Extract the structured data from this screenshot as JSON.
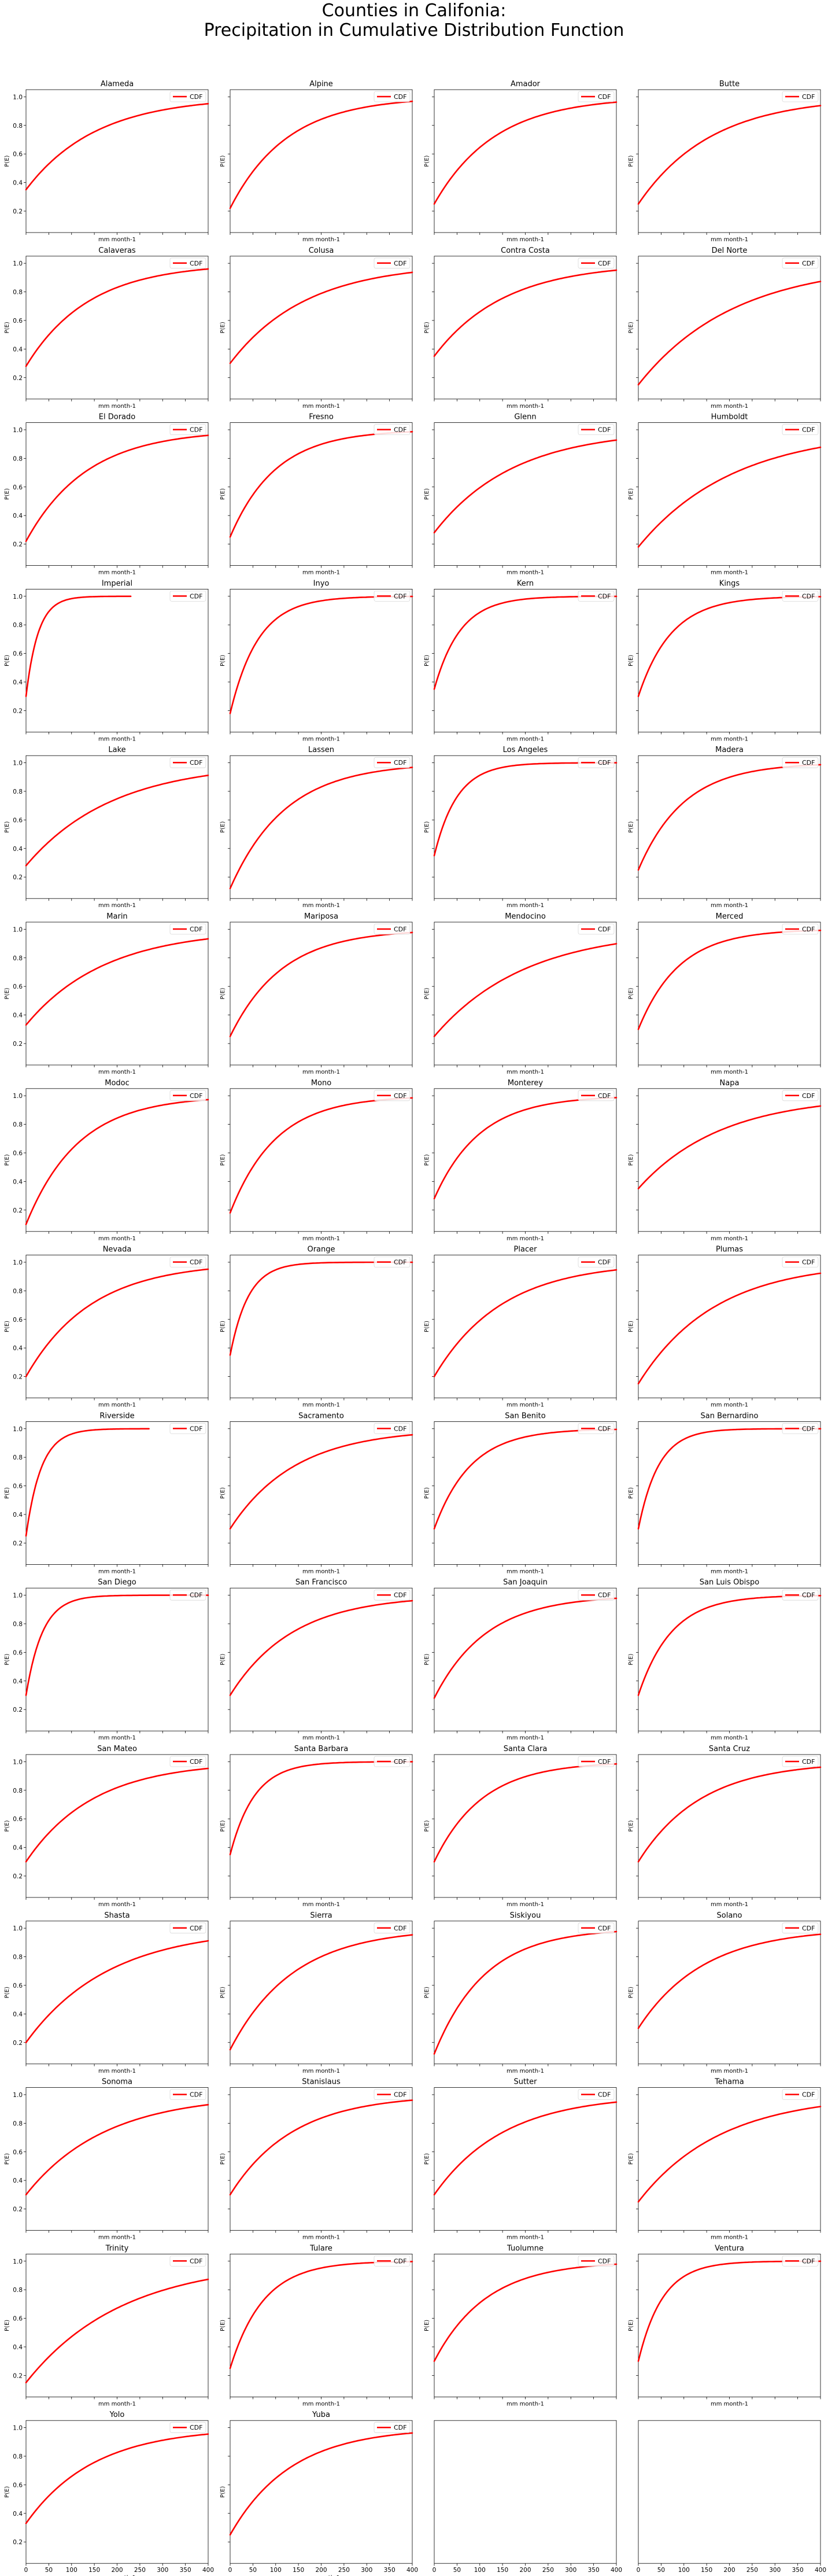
{
  "figure": {
    "title_line1": "Counties in Califonia:",
    "title_line2": "Precipitation in Cumulative Distribution Function",
    "xlabel": "mm month-1",
    "ylabel": "P(E)",
    "legend_label": "CDF",
    "line_color": "#ff0000"
  },
  "chart_data": {
    "type": "line",
    "layout": "grid 15 rows x 4 columns, 2 empty panels at end",
    "shared_axes": {
      "xlim": [
        0,
        400
      ],
      "ylim": [
        0.05,
        1.05
      ],
      "xticks": [
        0,
        50,
        100,
        150,
        200,
        250,
        300,
        350,
        400
      ],
      "yticks": [
        0.2,
        0.4,
        0.6,
        0.8,
        1.0
      ],
      "ytick_labels": [
        "0.2",
        "0.4",
        "0.6",
        "0.8",
        "1.0"
      ]
    },
    "panels": [
      {
        "title": "Alameda",
        "xmax": 400,
        "y0": 0.35,
        "k": 2.6
      },
      {
        "title": "Alpine",
        "xmax": 400,
        "y0": 0.22,
        "k": 3.2
      },
      {
        "title": "Amador",
        "xmax": 400,
        "y0": 0.25,
        "k": 3.0
      },
      {
        "title": "Butte",
        "xmax": 400,
        "y0": 0.25,
        "k": 2.5
      },
      {
        "title": "Calaveras",
        "xmax": 400,
        "y0": 0.28,
        "k": 2.9
      },
      {
        "title": "Colusa",
        "xmax": 400,
        "y0": 0.3,
        "k": 2.4
      },
      {
        "title": "Contra Costa",
        "xmax": 400,
        "y0": 0.35,
        "k": 2.6
      },
      {
        "title": "Del Norte",
        "xmax": 400,
        "y0": 0.15,
        "k": 1.9
      },
      {
        "title": "El Dorado",
        "xmax": 400,
        "y0": 0.22,
        "k": 3.0
      },
      {
        "title": "Fresno",
        "xmax": 400,
        "y0": 0.25,
        "k": 4.0
      },
      {
        "title": "Glenn",
        "xmax": 400,
        "y0": 0.28,
        "k": 2.3
      },
      {
        "title": "Humboldt",
        "xmax": 400,
        "y0": 0.18,
        "k": 1.9
      },
      {
        "title": "Imperial",
        "xmax": 230,
        "y0": 0.3,
        "k": 15.0
      },
      {
        "title": "Inyo",
        "xmax": 400,
        "y0": 0.18,
        "k": 6.5
      },
      {
        "title": "Kern",
        "xmax": 400,
        "y0": 0.35,
        "k": 7.0
      },
      {
        "title": "Kings",
        "xmax": 400,
        "y0": 0.3,
        "k": 5.5
      },
      {
        "title": "Lake",
        "xmax": 400,
        "y0": 0.28,
        "k": 2.1
      },
      {
        "title": "Lassen",
        "xmax": 400,
        "y0": 0.12,
        "k": 3.3
      },
      {
        "title": "Los Angeles",
        "xmax": 400,
        "y0": 0.35,
        "k": 8.0
      },
      {
        "title": "Madera",
        "xmax": 400,
        "y0": 0.25,
        "k": 4.0
      },
      {
        "title": "Marin",
        "xmax": 400,
        "y0": 0.33,
        "k": 2.3
      },
      {
        "title": "Mariposa",
        "xmax": 400,
        "y0": 0.25,
        "k": 3.5
      },
      {
        "title": "Mendocino",
        "xmax": 400,
        "y0": 0.25,
        "k": 2.0
      },
      {
        "title": "Merced",
        "xmax": 400,
        "y0": 0.3,
        "k": 4.5
      },
      {
        "title": "Modoc",
        "xmax": 400,
        "y0": 0.1,
        "k": 3.5
      },
      {
        "title": "Mono",
        "xmax": 400,
        "y0": 0.18,
        "k": 4.0
      },
      {
        "title": "Monterey",
        "xmax": 400,
        "y0": 0.28,
        "k": 4.0
      },
      {
        "title": "Napa",
        "xmax": 400,
        "y0": 0.35,
        "k": 2.2
      },
      {
        "title": "Nevada",
        "xmax": 400,
        "y0": 0.2,
        "k": 2.8
      },
      {
        "title": "Orange",
        "xmax": 400,
        "y0": 0.35,
        "k": 10.0
      },
      {
        "title": "Placer",
        "xmax": 400,
        "y0": 0.2,
        "k": 2.7
      },
      {
        "title": "Plumas",
        "xmax": 400,
        "y0": 0.15,
        "k": 2.4
      },
      {
        "title": "Riverside",
        "xmax": 270,
        "y0": 0.25,
        "k": 12.0
      },
      {
        "title": "Sacramento",
        "xmax": 400,
        "y0": 0.3,
        "k": 2.8
      },
      {
        "title": "San Benito",
        "xmax": 400,
        "y0": 0.3,
        "k": 5.0
      },
      {
        "title": "San Bernardino",
        "xmax": 400,
        "y0": 0.3,
        "k": 9.0
      },
      {
        "title": "San Diego",
        "xmax": 400,
        "y0": 0.3,
        "k": 11.0
      },
      {
        "title": "San Francisco",
        "xmax": 400,
        "y0": 0.3,
        "k": 2.9
      },
      {
        "title": "San Joaquin",
        "xmax": 400,
        "y0": 0.28,
        "k": 3.5
      },
      {
        "title": "San Luis Obispo",
        "xmax": 400,
        "y0": 0.3,
        "k": 5.5
      },
      {
        "title": "San Mateo",
        "xmax": 400,
        "y0": 0.3,
        "k": 2.7
      },
      {
        "title": "Santa Barbara",
        "xmax": 400,
        "y0": 0.35,
        "k": 7.5
      },
      {
        "title": "Santa Clara",
        "xmax": 400,
        "y0": 0.3,
        "k": 3.8
      },
      {
        "title": "Santa Cruz",
        "xmax": 400,
        "y0": 0.3,
        "k": 2.9
      },
      {
        "title": "Shasta",
        "xmax": 400,
        "y0": 0.2,
        "k": 2.2
      },
      {
        "title": "Sierra",
        "xmax": 400,
        "y0": 0.15,
        "k": 2.9
      },
      {
        "title": "Siskiyou",
        "xmax": 400,
        "y0": 0.12,
        "k": 3.6
      },
      {
        "title": "Solano",
        "xmax": 400,
        "y0": 0.3,
        "k": 2.8
      },
      {
        "title": "Sonoma",
        "xmax": 400,
        "y0": 0.3,
        "k": 2.3
      },
      {
        "title": "Stanislaus",
        "xmax": 400,
        "y0": 0.3,
        "k": 2.9
      },
      {
        "title": "Sutter",
        "xmax": 400,
        "y0": 0.3,
        "k": 2.6
      },
      {
        "title": "Tehama",
        "xmax": 400,
        "y0": 0.25,
        "k": 2.2
      },
      {
        "title": "Trinity",
        "xmax": 400,
        "y0": 0.15,
        "k": 1.9
      },
      {
        "title": "Tulare",
        "xmax": 400,
        "y0": 0.25,
        "k": 5.5
      },
      {
        "title": "Tuolumne",
        "xmax": 400,
        "y0": 0.3,
        "k": 3.5
      },
      {
        "title": "Ventura",
        "xmax": 400,
        "y0": 0.3,
        "k": 7.5
      },
      {
        "title": "Yolo",
        "xmax": 400,
        "y0": 0.33,
        "k": 2.7
      },
      {
        "title": "Yuba",
        "xmax": 400,
        "y0": 0.25,
        "k": 3.0
      },
      {
        "title": "",
        "empty": true
      },
      {
        "title": "",
        "empty": true
      }
    ]
  }
}
